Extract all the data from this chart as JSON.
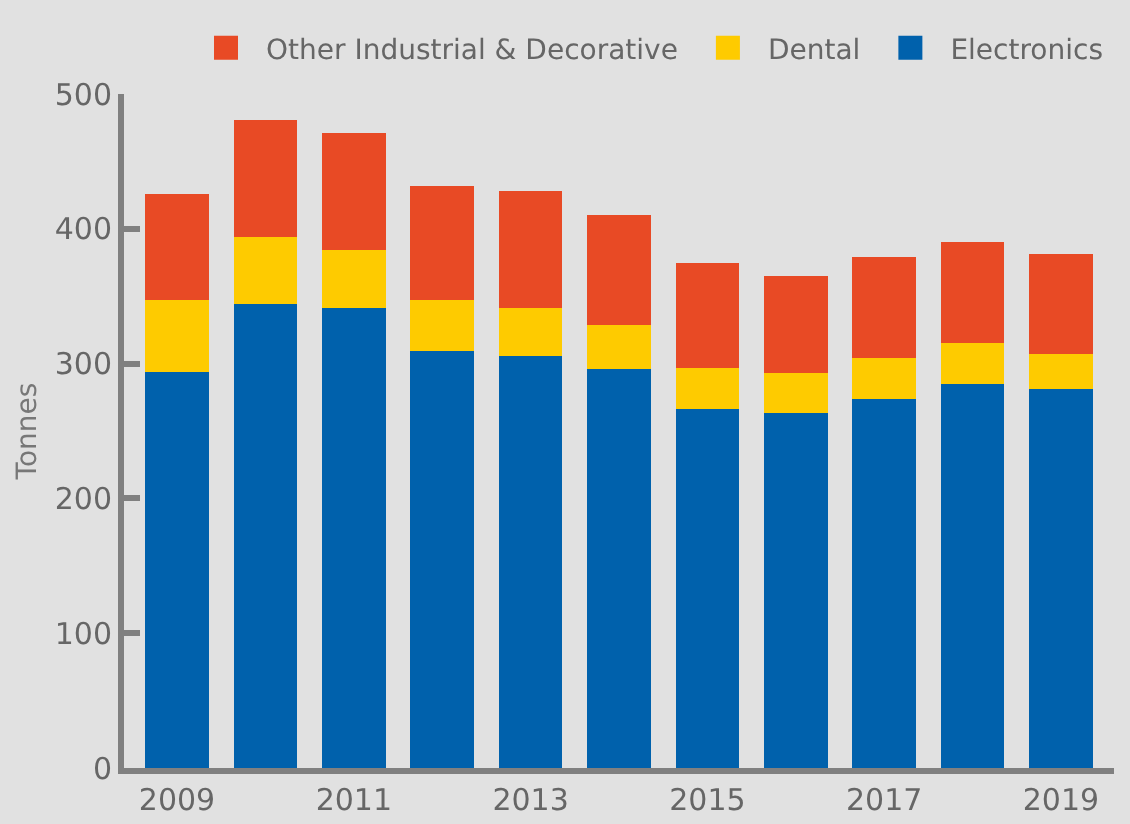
{
  "chart_data": {
    "type": "bar",
    "stacked": true,
    "ylabel": "Tonnes",
    "categories": [
      "2009",
      null,
      "2011",
      null,
      "2013",
      null,
      "2015",
      null,
      "2017",
      null,
      "2019"
    ],
    "series": [
      {
        "name": "Electronics",
        "color": "#0061ac",
        "values": [
          294,
          344,
          341,
          309,
          306,
          296,
          266,
          263,
          274,
          285,
          281
        ]
      },
      {
        "name": "Dental",
        "color": "#fecb00",
        "values": [
          53,
          50,
          43,
          38,
          35,
          33,
          31,
          30,
          30,
          30,
          26
        ]
      },
      {
        "name": "Other Industrial & Decorative",
        "color": "#e84a25",
        "values": [
          79,
          87,
          87,
          85,
          87,
          81,
          78,
          72,
          75,
          75,
          74
        ]
      }
    ],
    "ylim": [
      0,
      500
    ],
    "yticks": [
      0,
      100,
      200,
      300,
      400,
      500
    ],
    "grid": false,
    "legend": "top"
  }
}
